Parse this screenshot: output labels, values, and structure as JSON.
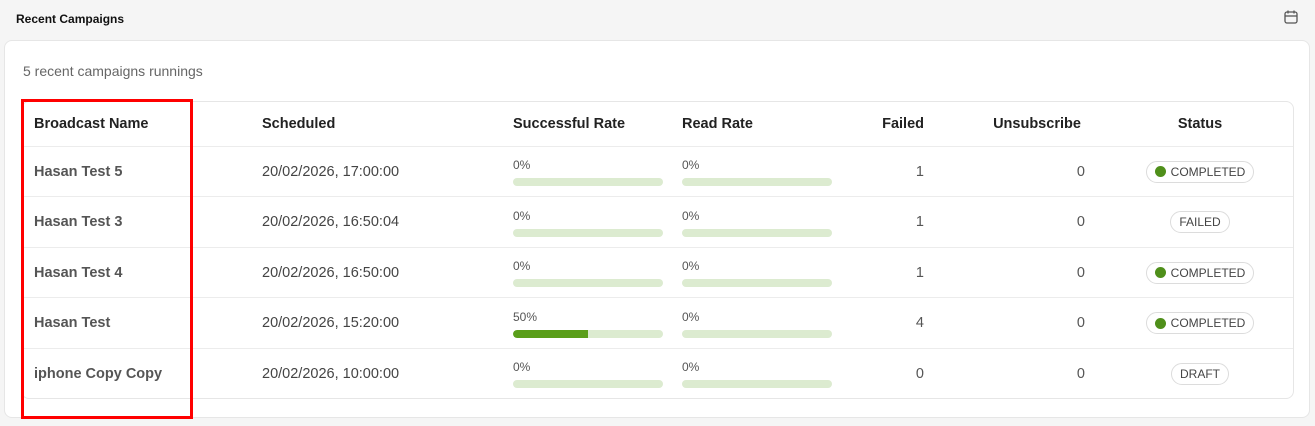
{
  "header": {
    "title": "Recent Campaigns",
    "icon": "calendar-icon"
  },
  "card": {
    "subtitle": "5 recent campaigns runnings"
  },
  "table": {
    "columns": [
      "Broadcast Name",
      "Scheduled",
      "Successful Rate",
      "Read Rate",
      "Failed",
      "Unsubscribe",
      "Status"
    ],
    "rows": [
      {
        "name": "Hasan Test 5",
        "scheduled": "20/02/2026, 17:00:00",
        "success_label": "0%",
        "success_pct": 0,
        "read_label": "0%",
        "read_pct": 0,
        "failed": "1",
        "unsubscribe": "0",
        "status": "COMPLETED",
        "status_dot": true
      },
      {
        "name": "Hasan Test 3",
        "scheduled": "20/02/2026, 16:50:04",
        "success_label": "0%",
        "success_pct": 0,
        "read_label": "0%",
        "read_pct": 0,
        "failed": "1",
        "unsubscribe": "0",
        "status": "FAILED",
        "status_dot": false
      },
      {
        "name": "Hasan Test 4",
        "scheduled": "20/02/2026, 16:50:00",
        "success_label": "0%",
        "success_pct": 0,
        "read_label": "0%",
        "read_pct": 0,
        "failed": "1",
        "unsubscribe": "0",
        "status": "COMPLETED",
        "status_dot": true
      },
      {
        "name": "Hasan Test",
        "scheduled": "20/02/2026, 15:20:00",
        "success_label": "50%",
        "success_pct": 50,
        "read_label": "0%",
        "read_pct": 0,
        "failed": "4",
        "unsubscribe": "0",
        "status": "COMPLETED",
        "status_dot": true
      },
      {
        "name": "iphone Copy Copy",
        "scheduled": "20/02/2026, 10:00:00",
        "success_label": "0%",
        "success_pct": 0,
        "read_label": "0%",
        "read_pct": 0,
        "failed": "0",
        "unsubscribe": "0",
        "status": "DRAFT",
        "status_dot": false
      }
    ]
  },
  "colors": {
    "bar_track": "#dcebd0",
    "bar_fill": "#5a9e1a",
    "status_dot": "#4f8f1a",
    "highlight": "#ff0000"
  }
}
